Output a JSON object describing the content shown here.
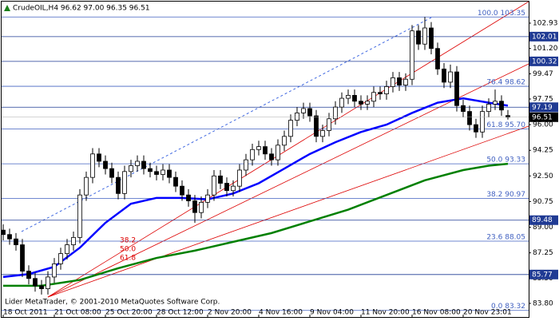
{
  "chart_data": {
    "type": "candlestick",
    "title": "CrudeOIL,H4  96.62 97.00 96.35 96.51",
    "footer": "Lider MetaTrader, © 2001-2010 MetaQuotes Software Corp.",
    "categories": [
      "18 Oct 2011",
      null,
      null,
      null,
      null,
      null,
      null,
      null,
      "21 Oct 08:00",
      null,
      null,
      null,
      null,
      null,
      null,
      null,
      "25 Oct 20:00",
      null,
      null,
      null,
      null,
      null,
      null,
      null,
      "28 Oct 12:00",
      null,
      null,
      null,
      null,
      null,
      null,
      null,
      "2 Nov 20:00",
      null,
      null,
      null,
      null,
      null,
      null,
      null,
      "4 Nov 16:00",
      null,
      null,
      null,
      null,
      null,
      null,
      null,
      "9 Nov 04:00",
      null,
      null,
      null,
      null,
      null,
      null,
      null,
      "11 Nov 20:00",
      null,
      null,
      null,
      null,
      null,
      null,
      null,
      "16 Nov 08:00",
      null,
      null,
      null,
      null,
      null,
      null,
      null,
      "20 Nov 23:01",
      null,
      null,
      null,
      null,
      null,
      null,
      null
    ],
    "open": [
      88.8,
      88.5,
      88.2,
      87.8,
      86.0,
      85.5,
      85.0,
      84.8,
      85.6,
      86.5,
      87.2,
      87.8,
      88.3,
      91.2,
      92.4,
      94.0,
      93.5,
      93.0,
      92.4,
      91.3,
      92.8,
      93.2,
      93.5,
      93.0,
      92.8,
      92.6,
      92.9,
      92.4,
      91.8,
      91.2,
      90.8,
      90.0,
      90.7,
      91.2,
      92.5,
      92.0,
      91.5,
      91.8,
      92.9,
      93.6,
      94.3,
      94.5,
      94.0,
      93.6,
      94.6,
      95.2,
      96.3,
      96.8,
      97.1,
      96.6,
      95.2,
      95.6,
      96.4,
      97.2,
      97.8,
      98.0,
      97.6,
      97.4,
      97.6,
      98.2,
      98.1,
      98.6,
      99.2,
      98.7,
      99.1,
      102.4,
      101.5,
      102.6,
      101.2,
      99.8,
      98.9,
      99.6,
      97.3,
      96.9,
      96.0,
      95.5,
      96.9,
      97.4,
      97.6,
      96.62
    ],
    "high": [
      89.2,
      88.9,
      88.6,
      88.2,
      86.4,
      85.9,
      85.4,
      86.0,
      86.9,
      87.6,
      88.2,
      88.7,
      91.6,
      92.8,
      94.4,
      94.4,
      93.9,
      93.4,
      92.8,
      93.2,
      93.6,
      93.9,
      93.9,
      93.4,
      93.2,
      93.3,
      93.3,
      92.8,
      92.2,
      91.6,
      91.2,
      91.1,
      91.6,
      92.9,
      92.9,
      92.4,
      92.2,
      93.3,
      94.0,
      94.7,
      94.9,
      94.9,
      94.4,
      95.0,
      95.6,
      96.7,
      97.2,
      97.5,
      97.5,
      97.0,
      96.0,
      96.8,
      97.6,
      98.2,
      98.4,
      98.4,
      98.0,
      98.0,
      98.6,
      98.6,
      99.0,
      99.6,
      99.6,
      99.5,
      102.8,
      102.8,
      103.35,
      103.0,
      101.6,
      100.2,
      100.1,
      100.0,
      97.7,
      97.3,
      96.4,
      97.3,
      97.8,
      98.4,
      98.0,
      97.0
    ],
    "low": [
      88.1,
      87.8,
      87.4,
      85.6,
      85.1,
      84.6,
      84.4,
      84.4,
      85.2,
      86.1,
      86.8,
      87.4,
      87.9,
      90.8,
      92.0,
      93.1,
      92.6,
      92.0,
      90.9,
      90.9,
      92.4,
      92.8,
      92.6,
      92.4,
      92.2,
      92.2,
      92.0,
      91.4,
      90.8,
      90.4,
      89.3,
      89.6,
      90.3,
      90.8,
      91.6,
      91.1,
      91.1,
      91.4,
      92.5,
      93.2,
      93.9,
      93.6,
      93.2,
      93.2,
      94.2,
      94.8,
      95.9,
      96.4,
      96.2,
      94.8,
      94.8,
      95.2,
      96.0,
      96.8,
      97.4,
      97.2,
      97.0,
      97.0,
      97.2,
      97.7,
      97.7,
      98.2,
      98.3,
      98.3,
      98.7,
      101.1,
      101.1,
      100.8,
      99.4,
      98.5,
      98.5,
      96.9,
      96.5,
      95.6,
      95.1,
      95.1,
      96.5,
      97.0,
      96.6,
      96.35
    ],
    "close": [
      88.5,
      88.2,
      87.8,
      86.0,
      85.5,
      85.0,
      84.8,
      85.6,
      86.5,
      87.2,
      87.8,
      88.3,
      91.2,
      92.4,
      94.0,
      93.5,
      93.0,
      92.4,
      91.3,
      92.8,
      93.2,
      93.5,
      93.0,
      92.8,
      92.6,
      92.9,
      92.4,
      91.8,
      91.2,
      90.8,
      90.0,
      90.7,
      91.2,
      92.5,
      92.0,
      91.5,
      91.8,
      92.9,
      93.6,
      94.3,
      94.5,
      94.0,
      93.6,
      94.6,
      95.2,
      96.3,
      96.8,
      97.1,
      96.6,
      95.2,
      95.6,
      96.4,
      97.2,
      97.8,
      98.0,
      97.6,
      97.4,
      97.6,
      98.2,
      98.1,
      98.6,
      99.2,
      98.7,
      99.1,
      102.4,
      101.5,
      102.6,
      101.2,
      99.8,
      98.9,
      99.6,
      97.3,
      96.9,
      96.0,
      95.5,
      96.9,
      97.4,
      97.6,
      97.0,
      96.51
    ],
    "moving_averages": [
      {
        "color": "#0000ff",
        "x": [
          0,
          4,
          8,
          12,
          16,
          20,
          24,
          28,
          32,
          36,
          40,
          44,
          48,
          52,
          56,
          60,
          64,
          68,
          72,
          76,
          79
        ],
        "values": [
          85.6,
          85.8,
          86.3,
          87.6,
          89.3,
          90.6,
          91.0,
          91.0,
          90.9,
          91.3,
          92.0,
          93.0,
          94.0,
          94.8,
          95.5,
          96.0,
          96.8,
          97.5,
          97.8,
          97.5,
          97.3
        ]
      },
      {
        "color": "#008000",
        "x": [
          0,
          6,
          12,
          18,
          24,
          30,
          36,
          42,
          48,
          54,
          60,
          66,
          72,
          76,
          79
        ],
        "values": [
          85.0,
          85.0,
          85.4,
          86.2,
          86.9,
          87.4,
          88.0,
          88.6,
          89.4,
          90.2,
          91.2,
          92.2,
          92.9,
          93.2,
          93.33
        ]
      }
    ],
    "fib_levels": [
      {
        "value": 103.35,
        "label": "100.0 103.35"
      },
      {
        "value": 98.62,
        "label": "76.4 98.62"
      },
      {
        "value": 95.7,
        "label": "61.8 95.70"
      },
      {
        "value": 93.33,
        "label": "50.0 93.33"
      },
      {
        "value": 90.97,
        "label": "38.2 90.97"
      },
      {
        "value": 88.05,
        "label": "23.6 88.05"
      },
      {
        "value": 83.32,
        "label": "0.0 83.32"
      }
    ],
    "fan_labels": [
      "38.2",
      "50.0",
      "61.8"
    ],
    "level_lines": [
      102.01,
      100.32,
      97.19,
      89.48,
      85.77
    ],
    "current_price": 96.51,
    "ylim": [
      82.87,
      104.4
    ],
    "yticks": [
      102.93,
      {
        "value": 101.2,
        "label": "101.20"
      },
      99.47,
      97.75,
      {
        "value": 96.0,
        "label": "96.00"
      },
      94.25,
      {
        "value": 92.5,
        "label": "92.50"
      },
      90.75,
      {
        "value": 89.0,
        "label": "89.00"
      },
      87.25,
      {
        "value": 85.5,
        "label": "85.50"
      },
      {
        "value": 83.8,
        "label": "83.80"
      }
    ]
  }
}
